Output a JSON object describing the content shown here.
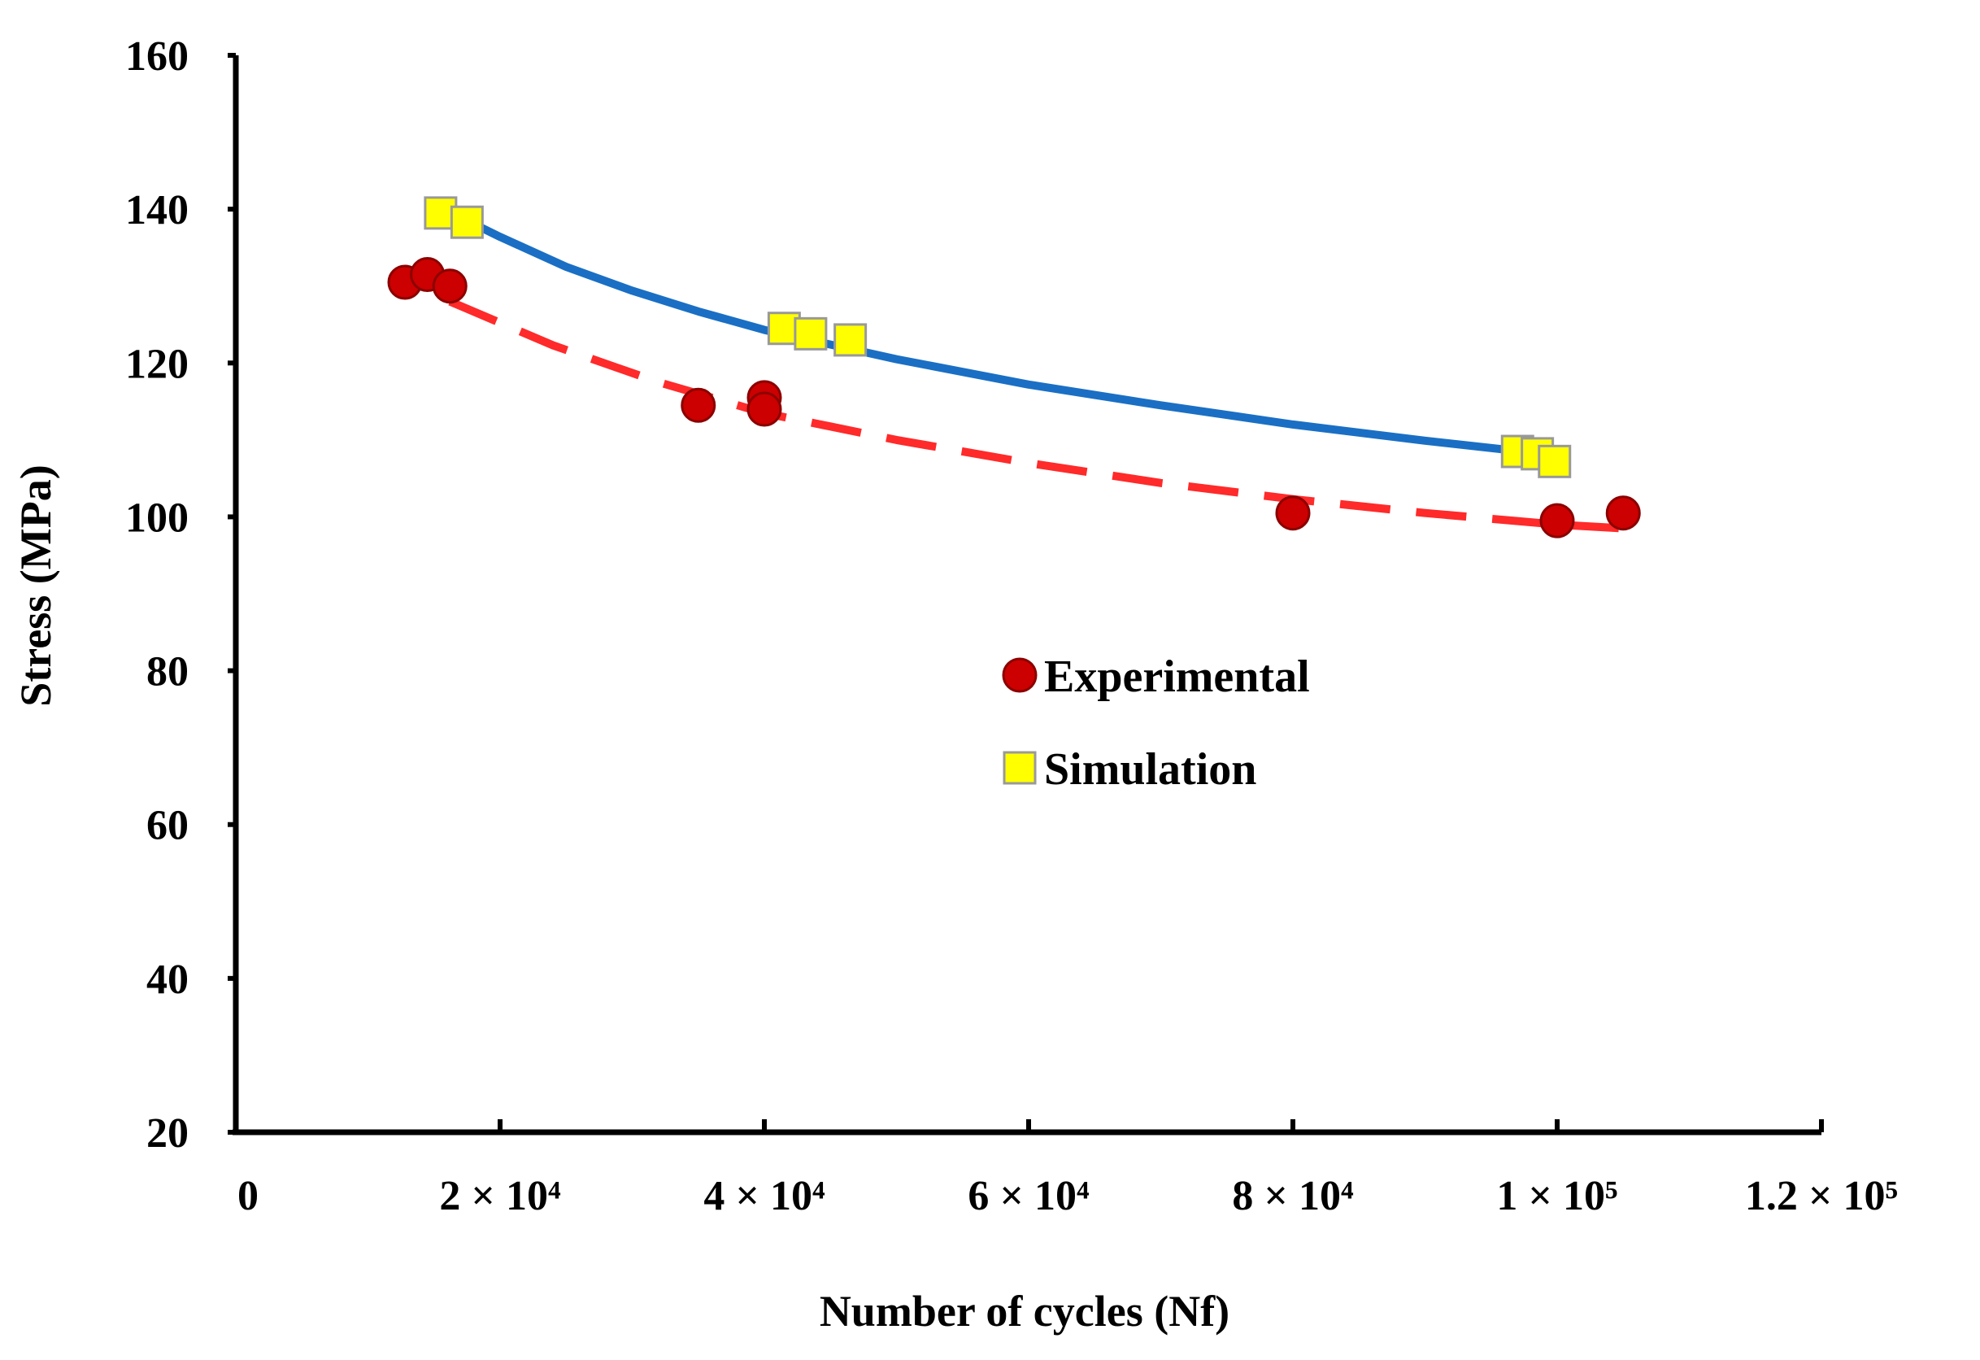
{
  "chart_data": {
    "type": "scatter",
    "title": "",
    "xlabel": "Number of cycles (Nf)",
    "ylabel": "Stress (MPa)",
    "xlim": [
      0,
      120000
    ],
    "ylim": [
      20,
      160
    ],
    "x_ticks": [
      {
        "value": 0,
        "label": "0"
      },
      {
        "value": 20000,
        "label": "2 × 10⁴"
      },
      {
        "value": 40000,
        "label": "4 × 10⁴"
      },
      {
        "value": 60000,
        "label": "6 × 10⁴"
      },
      {
        "value": 80000,
        "label": "8 × 10⁴"
      },
      {
        "value": 100000,
        "label": "1 × 10⁵"
      },
      {
        "value": 120000,
        "label": "1.2 × 10⁵"
      }
    ],
    "y_ticks": [
      {
        "value": 20,
        "label": "20"
      },
      {
        "value": 40,
        "label": "40"
      },
      {
        "value": 60,
        "label": "60"
      },
      {
        "value": 80,
        "label": "80"
      },
      {
        "value": 100,
        "label": "100"
      },
      {
        "value": 120,
        "label": "120"
      },
      {
        "value": 140,
        "label": "140"
      },
      {
        "value": 160,
        "label": "160"
      }
    ],
    "grid": false,
    "legend_position": "center-right",
    "series": [
      {
        "name": "Experimental",
        "marker": "circle",
        "color": "#cc0000",
        "points": [
          {
            "x": 12800,
            "y": 130.5
          },
          {
            "x": 14500,
            "y": 131.5
          },
          {
            "x": 16200,
            "y": 130.0
          },
          {
            "x": 35000,
            "y": 114.5
          },
          {
            "x": 40000,
            "y": 115.5
          },
          {
            "x": 40000,
            "y": 114.0
          },
          {
            "x": 80000,
            "y": 100.5
          },
          {
            "x": 100000,
            "y": 99.5
          },
          {
            "x": 105000,
            "y": 100.5
          }
        ],
        "fit": {
          "style": "dashed",
          "color": "#ff2a2a",
          "x": [
            16200,
            24000,
            32000,
            40000,
            50000,
            60000,
            70000,
            80000,
            90000,
            100000,
            105000
          ],
          "y": [
            128.0,
            122.3,
            117.5,
            113.5,
            110.0,
            107.0,
            104.4,
            102.3,
            100.5,
            99.0,
            98.5
          ]
        }
      },
      {
        "name": "Simulation",
        "marker": "square",
        "color": "#ffff00",
        "points": [
          {
            "x": 15500,
            "y": 139.5
          },
          {
            "x": 17500,
            "y": 138.3
          },
          {
            "x": 41500,
            "y": 124.5
          },
          {
            "x": 43500,
            "y": 123.8
          },
          {
            "x": 46500,
            "y": 123.0
          },
          {
            "x": 97000,
            "y": 108.5
          },
          {
            "x": 98500,
            "y": 108.2
          },
          {
            "x": 99800,
            "y": 107.2
          }
        ],
        "fit": {
          "style": "solid",
          "color": "#1a6fc4",
          "x": [
            15500,
            20000,
            25000,
            30000,
            35000,
            40000,
            50000,
            60000,
            70000,
            80000,
            90000,
            100000
          ],
          "y": [
            140.2,
            136.4,
            132.5,
            129.4,
            126.7,
            124.3,
            120.5,
            117.2,
            114.5,
            112.0,
            109.9,
            108.0
          ]
        }
      }
    ]
  }
}
